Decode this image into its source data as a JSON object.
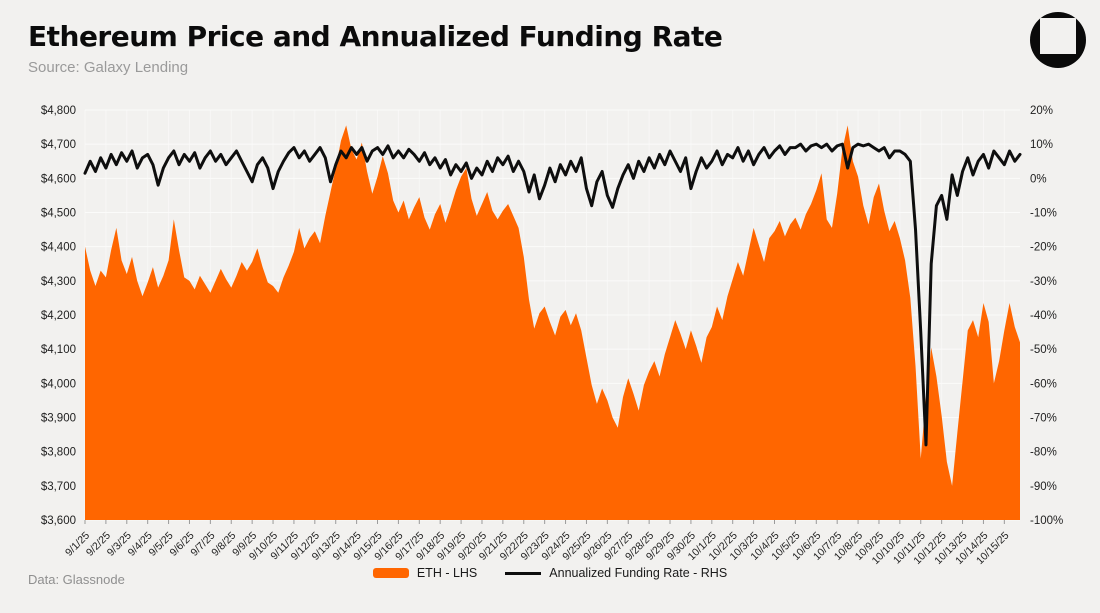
{
  "header": {
    "title": "Ethereum Price and Annualized Funding Rate",
    "subtitle": "Source: Galaxy Lending"
  },
  "footer": {
    "data_source": "Data: Glassnode"
  },
  "legend": [
    {
      "label": "ETH - LHS",
      "swatch": "area",
      "color": "#ff6600"
    },
    {
      "label": "Annualized Funding Rate - RHS",
      "swatch": "line",
      "color": "#0e0e0e"
    }
  ],
  "colors": {
    "background": "#f2f1ef",
    "price_area": "#ff6600",
    "funding_line": "#0e0e0e",
    "gridline": "#fbfbfa",
    "axis_text": "#1f1f1f",
    "tick_mark": "#9a9a9a"
  },
  "chart_data": {
    "type": "area+line combo, hourly-style time series",
    "title": "Ethereum Price and Annualized Funding Rate",
    "grid": "horizontal on, faint vertical per day",
    "legend_position": "bottom-center",
    "points_per_day": 4,
    "x_tick_labels": [
      "9/1/25",
      "9/2/25",
      "9/3/25",
      "9/4/25",
      "9/5/25",
      "9/6/25",
      "9/7/25",
      "9/8/25",
      "9/9/25",
      "9/10/25",
      "9/11/25",
      "9/12/25",
      "9/13/25",
      "9/14/25",
      "9/15/25",
      "9/16/25",
      "9/17/25",
      "9/18/25",
      "9/19/25",
      "9/20/25",
      "9/21/25",
      "9/22/25",
      "9/23/25",
      "9/24/25",
      "9/25/25",
      "9/26/25",
      "9/27/25",
      "9/28/25",
      "9/29/25",
      "9/30/25",
      "10/1/25",
      "10/2/25",
      "10/3/25",
      "10/4/25",
      "10/5/25",
      "10/6/25",
      "10/7/25",
      "10/8/25",
      "10/9/25",
      "10/10/25",
      "10/11/25",
      "10/12/25",
      "10/13/25",
      "10/14/25",
      "10/15/25"
    ],
    "left_axis": {
      "min": 3600,
      "max": 4800,
      "tick_labels": [
        "$4,800",
        "$4,700",
        "$4,600",
        "$4,500",
        "$4,400",
        "$4,300",
        "$4,200",
        "$4,100",
        "$4,000",
        "$3,900",
        "$3,800",
        "$3,700",
        "$3,600"
      ]
    },
    "right_axis": {
      "min": -100,
      "max": 20,
      "tick_labels": [
        "20%",
        "10%",
        "0%",
        "-10%",
        "-20%",
        "-30%",
        "-40%",
        "-50%",
        "-60%",
        "-70%",
        "-80%",
        "-90%",
        "-100%"
      ]
    },
    "series": [
      {
        "name": "ETH - LHS",
        "type": "area",
        "axis": "left",
        "color": "#ff6600",
        "values": [
          4400,
          4330,
          4285,
          4330,
          4310,
          4390,
          4455,
          4360,
          4320,
          4370,
          4300,
          4255,
          4295,
          4340,
          4280,
          4315,
          4360,
          4480,
          4390,
          4310,
          4300,
          4275,
          4315,
          4290,
          4265,
          4300,
          4335,
          4305,
          4280,
          4315,
          4355,
          4330,
          4355,
          4395,
          4340,
          4295,
          4285,
          4265,
          4310,
          4345,
          4385,
          4455,
          4395,
          4425,
          4445,
          4410,
          4490,
          4560,
          4630,
          4710,
          4755,
          4685,
          4655,
          4705,
          4620,
          4555,
          4605,
          4665,
          4615,
          4535,
          4500,
          4535,
          4480,
          4515,
          4545,
          4485,
          4450,
          4495,
          4525,
          4470,
          4515,
          4565,
          4605,
          4630,
          4540,
          4490,
          4525,
          4560,
          4505,
          4480,
          4505,
          4525,
          4490,
          4455,
          4370,
          4245,
          4160,
          4205,
          4225,
          4180,
          4140,
          4195,
          4215,
          4170,
          4205,
          4155,
          4075,
          3995,
          3940,
          3985,
          3950,
          3900,
          3870,
          3960,
          4015,
          3970,
          3920,
          3995,
          4035,
          4065,
          4020,
          4085,
          4135,
          4185,
          4145,
          4100,
          4155,
          4110,
          4060,
          4135,
          4165,
          4225,
          4185,
          4255,
          4305,
          4355,
          4315,
          4385,
          4455,
          4405,
          4355,
          4425,
          4445,
          4475,
          4430,
          4465,
          4485,
          4450,
          4495,
          4525,
          4565,
          4615,
          4480,
          4455,
          4555,
          4685,
          4755,
          4650,
          4605,
          4520,
          4465,
          4545,
          4585,
          4505,
          4445,
          4475,
          4425,
          4360,
          4250,
          4050,
          3780,
          3960,
          4105,
          4020,
          3905,
          3770,
          3700,
          3855,
          4005,
          4155,
          4185,
          4135,
          4235,
          4180,
          4000,
          4065,
          4155,
          4235,
          4165,
          4120
        ]
      },
      {
        "name": "Annualized Funding Rate - RHS",
        "type": "line",
        "axis": "right",
        "color": "#0e0e0e",
        "values": [
          1.5,
          5,
          2,
          6,
          3,
          7,
          4,
          7.5,
          5,
          8,
          3,
          6,
          7,
          4,
          -2,
          3,
          6,
          8,
          4,
          7,
          5,
          7.5,
          3,
          6,
          8,
          5,
          7,
          4,
          6,
          8,
          5,
          2,
          -1,
          4,
          6,
          3,
          -3,
          2,
          5,
          7.5,
          9,
          6,
          8,
          5,
          7,
          9,
          6,
          -1,
          4,
          8,
          6,
          9,
          7,
          9,
          5,
          8,
          9,
          7,
          9.5,
          6,
          8,
          6,
          8.5,
          7,
          5,
          7.5,
          4,
          6,
          3,
          5.5,
          1,
          4,
          2,
          4.5,
          0,
          3,
          1,
          5,
          2,
          6,
          4,
          6.5,
          2,
          5,
          2,
          -4,
          1,
          -6,
          -2,
          3,
          -1,
          4,
          1,
          5,
          2,
          6,
          -3,
          -8,
          -1,
          2,
          -5,
          -8.5,
          -3,
          1,
          4,
          0,
          5,
          2,
          6,
          3,
          7,
          4,
          8,
          5,
          2,
          6,
          -3,
          2,
          6,
          3,
          5,
          8,
          4,
          7,
          6,
          9,
          5,
          8,
          4,
          7,
          9,
          6,
          8,
          9.5,
          7,
          9,
          9,
          10,
          8,
          9.5,
          10,
          9,
          10,
          8,
          9.5,
          10,
          3,
          9,
          10,
          9.5,
          10,
          9,
          8,
          9,
          6,
          8,
          8,
          7,
          5,
          -15,
          -45,
          -78,
          -25,
          -8,
          -5,
          -12,
          1,
          -5,
          2,
          6,
          1,
          5,
          7,
          3,
          8,
          6,
          4,
          8,
          5,
          7
        ]
      }
    ]
  }
}
